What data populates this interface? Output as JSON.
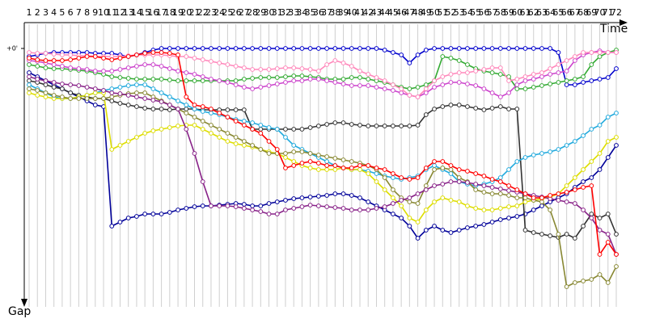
{
  "chart_data": {
    "type": "line",
    "x_label": "Time",
    "y_label": "Gap",
    "x": [
      1,
      2,
      3,
      4,
      5,
      6,
      7,
      8,
      9,
      10,
      11,
      12,
      13,
      14,
      15,
      16,
      17,
      18,
      19,
      20,
      21,
      22,
      23,
      24,
      25,
      26,
      27,
      28,
      29,
      30,
      31,
      32,
      33,
      34,
      35,
      36,
      37,
      38,
      39,
      40,
      41,
      42,
      43,
      44,
      45,
      46,
      47,
      48,
      49,
      50,
      51,
      52,
      53,
      54,
      55,
      56,
      57,
      58,
      59,
      60,
      61,
      62,
      63,
      64,
      65,
      66,
      67,
      68,
      69,
      70,
      71,
      72
    ],
    "xlim": [
      1,
      72
    ],
    "ylim": [
      0,
      315
    ],
    "y_reversed": true,
    "yticks": [
      {
        "value": 0,
        "label": "+0'"
      }
    ],
    "grid": true,
    "series": [
      {
        "color": "#0000cc",
        "values": [
          10,
          8,
          6,
          5,
          5,
          5,
          5,
          5,
          6,
          6,
          6,
          8,
          10,
          8,
          5,
          2,
          0,
          0,
          0,
          0,
          0,
          0,
          0,
          0,
          0,
          0,
          0,
          0,
          0,
          0,
          0,
          0,
          0,
          0,
          0,
          0,
          0,
          0,
          0,
          0,
          0,
          0,
          0,
          2,
          5,
          8,
          18,
          8,
          2,
          0,
          0,
          0,
          0,
          0,
          0,
          0,
          0,
          0,
          0,
          0,
          0,
          0,
          0,
          0,
          5,
          45,
          45,
          42,
          40,
          38,
          36,
          25
        ]
      },
      {
        "color": "#000099",
        "values": [
          30,
          35,
          40,
          45,
          50,
          55,
          60,
          65,
          70,
          72,
          220,
          215,
          210,
          208,
          205,
          205,
          205,
          203,
          200,
          198,
          196,
          195,
          195,
          194,
          193,
          192,
          193,
          195,
          195,
          192,
          190,
          188,
          186,
          185,
          184,
          183,
          182,
          180,
          180,
          182,
          185,
          190,
          195,
          200,
          205,
          210,
          220,
          235,
          225,
          220,
          225,
          228,
          225,
          222,
          220,
          218,
          215,
          212,
          210,
          208,
          205,
          200,
          195,
          190,
          185,
          180,
          172,
          165,
          160,
          150,
          135,
          120
        ]
      },
      {
        "color": "#33aa33",
        "values": [
          20,
          22,
          24,
          25,
          25,
          26,
          27,
          28,
          30,
          32,
          35,
          36,
          37,
          38,
          38,
          38,
          38,
          39,
          40,
          40,
          40,
          40,
          40,
          40,
          40,
          40,
          38,
          37,
          36,
          36,
          36,
          35,
          34,
          34,
          35,
          36,
          38,
          38,
          38,
          36,
          36,
          38,
          40,
          42,
          45,
          48,
          50,
          48,
          45,
          40,
          10,
          12,
          15,
          20,
          25,
          28,
          30,
          32,
          35,
          50,
          50,
          48,
          46,
          44,
          42,
          40,
          38,
          35,
          20,
          10,
          5,
          2
        ]
      },
      {
        "color": "#cc44cc",
        "values": [
          15,
          16,
          18,
          20,
          22,
          24,
          25,
          26,
          28,
          28,
          28,
          26,
          24,
          22,
          20,
          20,
          22,
          25,
          28,
          30,
          32,
          35,
          38,
          40,
          42,
          45,
          48,
          50,
          48,
          46,
          44,
          42,
          40,
          40,
          38,
          38,
          40,
          42,
          44,
          46,
          46,
          46,
          48,
          50,
          52,
          55,
          58,
          60,
          55,
          48,
          45,
          42,
          42,
          44,
          46,
          50,
          55,
          60,
          55,
          45,
          40,
          38,
          35,
          32,
          30,
          28,
          15,
          8,
          5,
          3,
          5,
          5
        ]
      },
      {
        "color": "#333333",
        "values": [
          40,
          42,
          45,
          48,
          50,
          55,
          58,
          60,
          62,
          62,
          65,
          68,
          70,
          72,
          74,
          75,
          75,
          76,
          75,
          75,
          75,
          76,
          76,
          76,
          76,
          76,
          76,
          100,
          100,
          100,
          100,
          100,
          100,
          100,
          98,
          96,
          94,
          92,
          92,
          94,
          95,
          96,
          96,
          96,
          96,
          96,
          96,
          95,
          82,
          75,
          72,
          70,
          70,
          72,
          74,
          76,
          74,
          72,
          75,
          75,
          225,
          228,
          230,
          232,
          234,
          230,
          235,
          220,
          205,
          210,
          205,
          230
        ]
      },
      {
        "color": "#22aadd",
        "values": [
          45,
          50,
          55,
          60,
          62,
          62,
          60,
          58,
          55,
          52,
          50,
          48,
          46,
          45,
          45,
          50,
          55,
          60,
          65,
          70,
          75,
          78,
          80,
          82,
          85,
          88,
          90,
          92,
          95,
          98,
          100,
          110,
          120,
          125,
          130,
          135,
          140,
          145,
          148,
          150,
          150,
          152,
          155,
          158,
          160,
          162,
          160,
          158,
          150,
          145,
          150,
          155,
          165,
          168,
          170,
          168,
          165,
          160,
          150,
          140,
          135,
          132,
          130,
          128,
          125,
          120,
          115,
          108,
          100,
          95,
          85,
          80
        ]
      },
      {
        "color": "#dddd00",
        "values": [
          55,
          58,
          60,
          62,
          62,
          62,
          60,
          58,
          55,
          55,
          125,
          120,
          115,
          110,
          105,
          102,
          100,
          98,
          96,
          95,
          95,
          100,
          105,
          110,
          115,
          118,
          120,
          122,
          125,
          128,
          130,
          135,
          140,
          145,
          148,
          150,
          150,
          150,
          148,
          150,
          150,
          155,
          165,
          175,
          185,
          195,
          210,
          215,
          200,
          190,
          185,
          188,
          190,
          195,
          198,
          200,
          200,
          198,
          196,
          195,
          190,
          188,
          186,
          184,
          180,
          170,
          160,
          150,
          140,
          130,
          115,
          110
        ]
      },
      {
        "color": "#888833",
        "values": [
          50,
          52,
          55,
          58,
          60,
          62,
          62,
          62,
          62,
          62,
          60,
          58,
          56,
          55,
          55,
          60,
          65,
          70,
          75,
          80,
          85,
          90,
          95,
          100,
          105,
          110,
          115,
          120,
          125,
          130,
          130,
          130,
          128,
          128,
          130,
          132,
          134,
          136,
          138,
          140,
          142,
          145,
          150,
          160,
          175,
          185,
          190,
          192,
          170,
          150,
          148,
          150,
          160,
          165,
          175,
          178,
          180,
          180,
          182,
          185,
          185,
          188,
          190,
          200,
          230,
          295,
          290,
          288,
          286,
          280,
          290,
          270
        ]
      },
      {
        "color": "#882288",
        "values": [
          35,
          38,
          40,
          42,
          44,
          45,
          46,
          48,
          50,
          52,
          55,
          56,
          58,
          60,
          62,
          64,
          66,
          70,
          75,
          100,
          130,
          165,
          195,
          195,
          195,
          196,
          198,
          200,
          202,
          205,
          205,
          200,
          198,
          196,
          194,
          195,
          196,
          197,
          198,
          200,
          200,
          200,
          198,
          196,
          192,
          188,
          185,
          180,
          175,
          170,
          168,
          165,
          165,
          166,
          168,
          170,
          172,
          174,
          176,
          178,
          180,
          182,
          184,
          186,
          188,
          190,
          192,
          200,
          210,
          225,
          230,
          255
        ]
      },
      {
        "color": "#ff88bb",
        "values": [
          5,
          6,
          6,
          7,
          8,
          8,
          9,
          9,
          10,
          10,
          10,
          10,
          9,
          8,
          8,
          8,
          8,
          9,
          10,
          10,
          12,
          14,
          16,
          18,
          20,
          22,
          24,
          26,
          26,
          26,
          25,
          24,
          24,
          25,
          26,
          28,
          20,
          15,
          18,
          22,
          28,
          32,
          36,
          40,
          45,
          50,
          58,
          60,
          50,
          40,
          35,
          32,
          30,
          30,
          28,
          26,
          24,
          24,
          40,
          38,
          35,
          32,
          30,
          25,
          20,
          15,
          10,
          5,
          5,
          5,
          5,
          5
        ]
      },
      {
        "color": "#ff0000",
        "values": [
          12,
          14,
          15,
          15,
          15,
          14,
          12,
          10,
          10,
          12,
          14,
          12,
          10,
          8,
          6,
          5,
          5,
          6,
          8,
          60,
          70,
          72,
          75,
          80,
          85,
          90,
          95,
          100,
          105,
          115,
          125,
          148,
          145,
          142,
          140,
          142,
          145,
          145,
          148,
          148,
          145,
          145,
          148,
          150,
          155,
          160,
          162,
          160,
          148,
          140,
          140,
          145,
          150,
          152,
          155,
          158,
          162,
          165,
          170,
          175,
          180,
          185,
          185,
          182,
          180,
          178,
          175,
          172,
          170,
          255,
          240,
          255
        ]
      }
    ]
  }
}
